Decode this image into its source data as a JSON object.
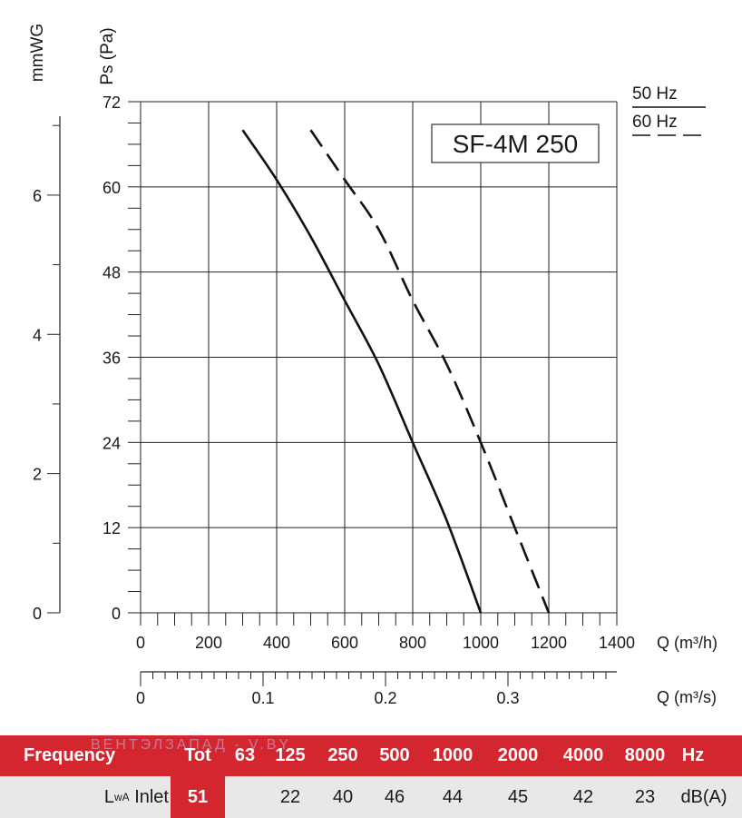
{
  "chart_data": {
    "type": "line",
    "title": "SF-4M 250",
    "ylabel": "Ps (Pa)",
    "ylabel_secondary": "mmWG",
    "xlabel": "Q (m³/h)",
    "xlabel_secondary": "Q (m³/s)",
    "xlim": [
      0,
      1400
    ],
    "ylim": [
      0,
      72
    ],
    "secondary_y_ticks": [
      "0",
      "2",
      "4",
      "6"
    ],
    "secondary_x_ticks": [
      "0",
      "0.1",
      "0.2",
      "0.3"
    ],
    "x_ticks": [
      "0",
      "200",
      "400",
      "600",
      "800",
      "1000",
      "1200",
      "1400"
    ],
    "y_ticks": [
      "0",
      "12",
      "24",
      "36",
      "48",
      "60",
      "72"
    ],
    "grid": true,
    "legend_position": "top-right",
    "series": [
      {
        "name": "50 Hz",
        "style": "solid",
        "x": [
          300,
          400,
          500,
          600,
          700,
          800,
          900,
          1000
        ],
        "y": [
          68,
          61,
          53,
          44,
          35,
          24,
          13,
          0
        ]
      },
      {
        "name": "60 Hz",
        "style": "dashed",
        "x": [
          500,
          600,
          700,
          800,
          900,
          1000,
          1100,
          1200
        ],
        "y": [
          68,
          61,
          54,
          44,
          35,
          24,
          12,
          0
        ]
      }
    ]
  },
  "table": {
    "watermark": "ВЕНТЭЛЗАПАД - V.BY",
    "header": {
      "label": "Frequency",
      "tot": "Tot",
      "bands": [
        "63",
        "125",
        "250",
        "500",
        "1000",
        "2000",
        "4000",
        "8000"
      ],
      "unit": "Hz"
    },
    "row": {
      "label_main": "L",
      "label_sub": "wA",
      "label_rest": "Inlet",
      "tot": "51",
      "values": [
        "",
        "22",
        "40",
        "46",
        "44",
        "45",
        "42",
        "23"
      ],
      "unit": "dB(A)"
    }
  },
  "colors": {
    "accent": "#d3262e",
    "row_bg": "#e8e8e8",
    "line": "#111111",
    "grid": "#222222"
  }
}
